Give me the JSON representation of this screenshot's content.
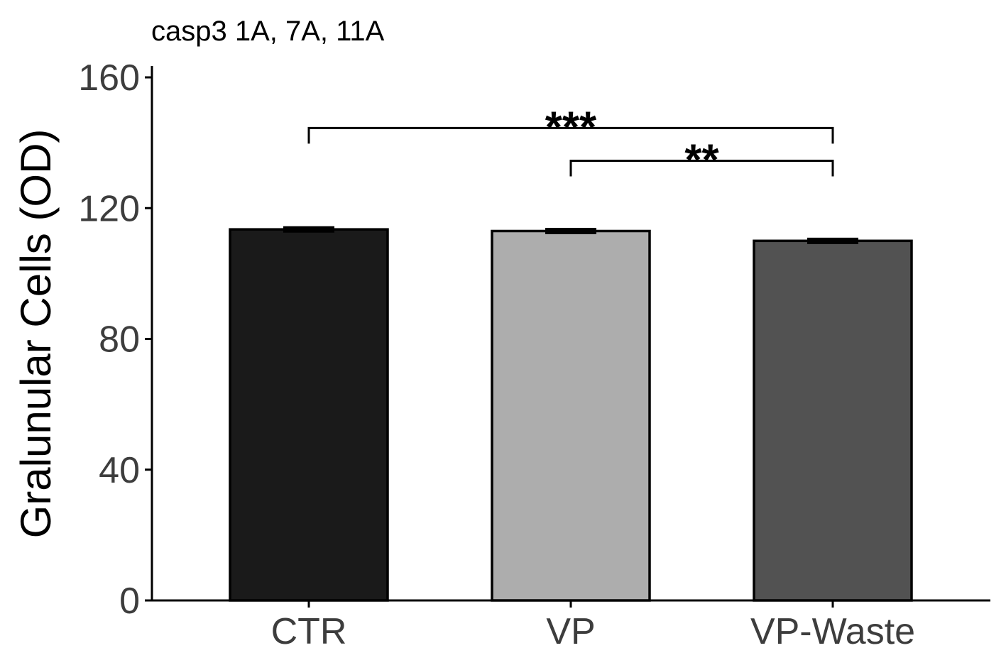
{
  "chart_data": {
    "type": "bar",
    "title": "casp3 1A, 7A, 11A",
    "xlabel": "",
    "ylabel": "Gralunular Cells (OD)",
    "categories": [
      "CTR",
      "VP",
      "VP-Waste"
    ],
    "values": [
      113.5,
      113.0,
      110.0
    ],
    "errors": [
      0.8,
      0.8,
      0.8
    ],
    "colors": [
      "#1a1a1a",
      "#adadad",
      "#525252"
    ],
    "ylim": [
      0,
      160
    ],
    "yticks": [
      0,
      40,
      80,
      120,
      160
    ],
    "grid": false,
    "legend": "none",
    "significance": [
      {
        "from": "CTR",
        "to": "VP-Waste",
        "label": "***",
        "y": 144.5
      },
      {
        "from": "VP",
        "to": "VP-Waste",
        "label": "**",
        "y": 134.5
      }
    ]
  }
}
